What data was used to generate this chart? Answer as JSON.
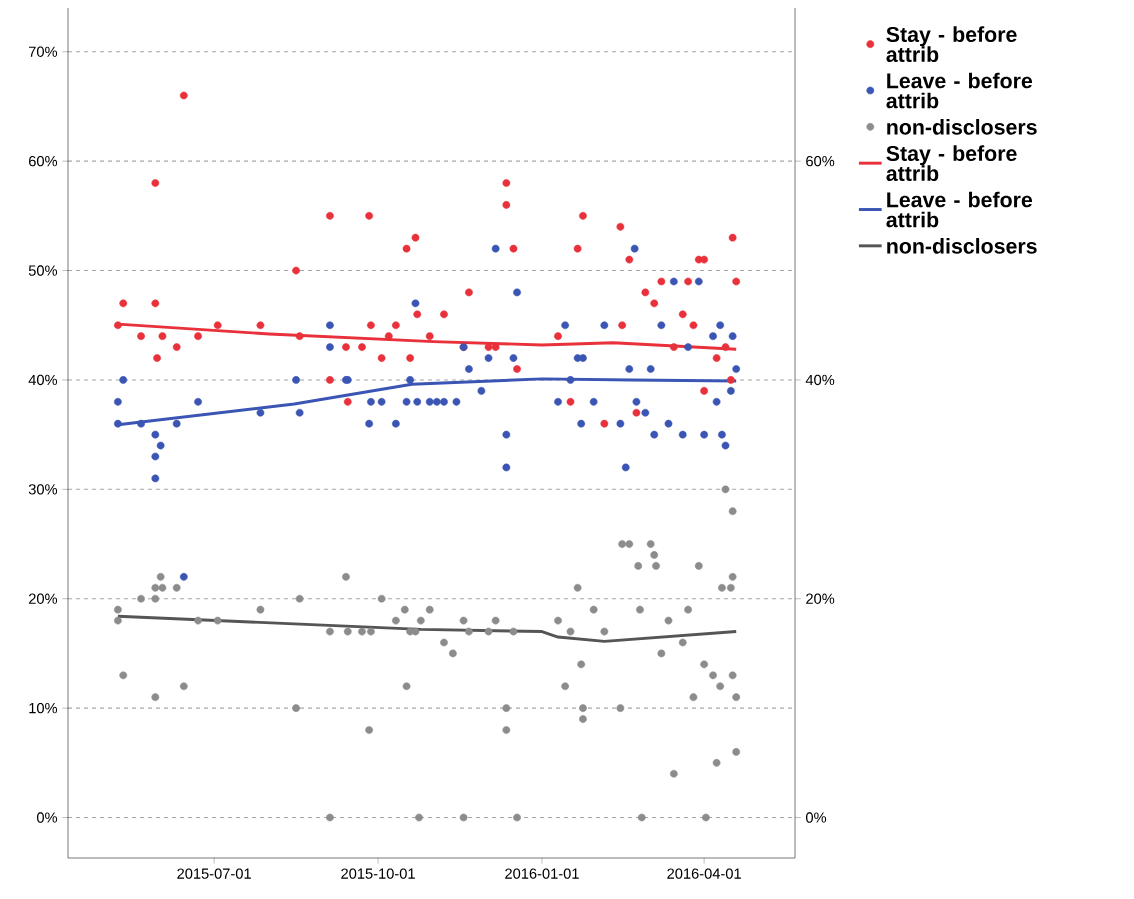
{
  "chart_data": {
    "type": "scatter",
    "xlim": [
      "2015-04-10",
      "2016-05-22"
    ],
    "xticks": [
      "2015-07-01",
      "2015-10-01",
      "2016-01-01",
      "2016-04-01"
    ],
    "ylim": [
      -3.7,
      74
    ],
    "yticks": [
      {
        "value": 0,
        "label": "0%"
      },
      {
        "value": 10,
        "label": "10%"
      },
      {
        "value": 20,
        "label": "20%"
      },
      {
        "value": 30,
        "label": "30%"
      },
      {
        "value": 40,
        "label": "40%"
      },
      {
        "value": 50,
        "label": "50%"
      },
      {
        "value": 60,
        "label": "60%"
      },
      {
        "value": 70,
        "label": "70%"
      }
    ],
    "y2lim": [
      -3.7,
      74
    ],
    "y2ticks": [
      {
        "value": 0,
        "label": "0%"
      },
      {
        "value": 20,
        "label": "20%"
      },
      {
        "value": 40,
        "label": "40%"
      },
      {
        "value": 60,
        "label": "60%"
      }
    ],
    "grid": "y",
    "legend": "right",
    "marker": "circle",
    "series": [
      {
        "name": "Stay - before attrib",
        "color": "#e8313a",
        "x": [
          "2015-05-08",
          "2015-05-11",
          "2015-05-21",
          "2015-05-29",
          "2015-05-29",
          "2015-05-30",
          "2015-06-02",
          "2015-06-10",
          "2015-06-14",
          "2015-06-22",
          "2015-07-03",
          "2015-07-27",
          "2015-08-16",
          "2015-08-18",
          "2015-09-04",
          "2015-09-04",
          "2015-09-13",
          "2015-09-14",
          "2015-09-22",
          "2015-09-26",
          "2015-09-27",
          "2015-10-03",
          "2015-10-07",
          "2015-10-11",
          "2015-10-17",
          "2015-10-19",
          "2015-10-22",
          "2015-10-23",
          "2015-10-30",
          "2015-11-07",
          "2015-11-18",
          "2015-11-21",
          "2015-12-02",
          "2015-12-06",
          "2015-12-12",
          "2015-12-12",
          "2015-12-16",
          "2015-12-18",
          "2016-01-10",
          "2016-01-17",
          "2016-01-21",
          "2016-01-24",
          "2016-02-05",
          "2016-02-14",
          "2016-02-15",
          "2016-02-19",
          "2016-02-23",
          "2016-02-28",
          "2016-03-04",
          "2016-03-08",
          "2016-03-15",
          "2016-03-20",
          "2016-03-23",
          "2016-03-26",
          "2016-03-29",
          "2016-04-01",
          "2016-04-01",
          "2016-04-08",
          "2016-04-13",
          "2016-04-17",
          "2016-04-19",
          "2016-04-16"
        ],
        "values": [
          45,
          47,
          44,
          58,
          47,
          42,
          44,
          43,
          66,
          44,
          45,
          45,
          50,
          44,
          55,
          40,
          43,
          38,
          43,
          55,
          45,
          42,
          44,
          45,
          52,
          42,
          53,
          46,
          44,
          46,
          43,
          48,
          43,
          43,
          58,
          56,
          52,
          41,
          44,
          38,
          52,
          55,
          36,
          54,
          45,
          51,
          37,
          48,
          47,
          49,
          43,
          46,
          49,
          45,
          51,
          51,
          39,
          42,
          43,
          53,
          49,
          40
        ]
      },
      {
        "name": "Leave - before attrib",
        "color": "#3a55b4",
        "x": [
          "2015-05-08",
          "2015-05-08",
          "2015-05-11",
          "2015-05-21",
          "2015-05-29",
          "2015-05-29",
          "2015-05-29",
          "2015-06-01",
          "2015-06-10",
          "2015-06-14",
          "2015-06-22",
          "2015-07-27",
          "2015-08-16",
          "2015-08-18",
          "2015-09-04",
          "2015-09-04",
          "2015-09-13",
          "2015-09-14",
          "2015-09-26",
          "2015-09-27",
          "2015-10-03",
          "2015-10-11",
          "2015-10-17",
          "2015-10-19",
          "2015-10-22",
          "2015-10-23",
          "2015-10-30",
          "2015-11-03",
          "2015-11-07",
          "2015-11-14",
          "2015-11-18",
          "2015-11-21",
          "2015-11-28",
          "2015-12-02",
          "2015-12-06",
          "2015-12-12",
          "2015-12-12",
          "2015-12-16",
          "2015-12-18",
          "2016-01-10",
          "2016-01-14",
          "2016-01-17",
          "2016-01-21",
          "2016-01-23",
          "2016-01-24",
          "2016-01-30",
          "2016-02-05",
          "2016-02-14",
          "2016-02-17",
          "2016-02-19",
          "2016-02-22",
          "2016-02-23",
          "2016-02-28",
          "2016-03-02",
          "2016-03-04",
          "2016-03-08",
          "2016-03-12",
          "2016-03-15",
          "2016-03-20",
          "2016-03-23",
          "2016-03-29",
          "2016-04-01",
          "2016-04-06",
          "2016-04-08",
          "2016-04-10",
          "2016-04-11",
          "2016-04-13",
          "2016-04-17",
          "2016-04-19",
          "2016-04-16"
        ],
        "values": [
          38,
          36,
          40,
          36,
          35,
          33,
          31,
          34,
          36,
          22,
          38,
          37,
          40,
          37,
          45,
          43,
          40,
          40,
          36,
          38,
          38,
          36,
          38,
          40,
          47,
          38,
          38,
          38,
          38,
          38,
          43,
          41,
          39,
          42,
          52,
          35,
          32,
          42,
          48,
          38,
          45,
          40,
          42,
          36,
          42,
          38,
          45,
          36,
          32,
          41,
          52,
          38,
          37,
          41,
          35,
          45,
          36,
          49,
          35,
          43,
          49,
          35,
          44,
          38,
          45,
          35,
          34,
          44,
          41,
          39
        ]
      },
      {
        "name": "non-disclosers",
        "color": "#8c8c8c",
        "x": [
          "2015-05-08",
          "2015-05-08",
          "2015-05-11",
          "2015-05-21",
          "2015-05-29",
          "2015-05-29",
          "2015-05-29",
          "2015-06-01",
          "2015-06-02",
          "2015-06-10",
          "2015-06-14",
          "2015-06-22",
          "2015-07-03",
          "2015-07-27",
          "2015-08-16",
          "2015-08-18",
          "2015-09-04",
          "2015-09-04",
          "2015-09-13",
          "2015-09-14",
          "2015-09-22",
          "2015-09-26",
          "2015-09-27",
          "2015-10-03",
          "2015-10-11",
          "2015-10-16",
          "2015-10-17",
          "2015-10-19",
          "2015-10-22",
          "2015-10-24",
          "2015-10-25",
          "2015-10-30",
          "2015-11-07",
          "2015-11-12",
          "2015-11-18",
          "2015-11-18",
          "2015-11-21",
          "2015-12-02",
          "2015-12-06",
          "2015-12-12",
          "2015-12-12",
          "2015-12-16",
          "2015-12-18",
          "2016-01-10",
          "2016-01-14",
          "2016-01-17",
          "2016-01-21",
          "2016-01-23",
          "2016-01-24",
          "2016-01-24",
          "2016-01-30",
          "2016-02-05",
          "2016-02-14",
          "2016-02-15",
          "2016-02-19",
          "2016-02-24",
          "2016-02-25",
          "2016-02-26",
          "2016-03-02",
          "2016-03-04",
          "2016-03-05",
          "2016-03-08",
          "2016-03-12",
          "2016-03-15",
          "2016-03-20",
          "2016-03-23",
          "2016-03-26",
          "2016-03-29",
          "2016-04-01",
          "2016-04-02",
          "2016-04-06",
          "2016-04-08",
          "2016-04-10",
          "2016-04-11",
          "2016-04-13",
          "2016-04-16",
          "2016-04-17",
          "2016-04-19",
          "2016-04-19",
          "2016-04-17",
          "2016-04-17"
        ],
        "values": [
          19,
          18,
          13,
          20,
          21,
          20,
          11,
          22,
          21,
          21,
          12,
          18,
          18,
          19,
          10,
          20,
          0,
          17,
          22,
          17,
          17,
          8,
          17,
          20,
          18,
          19,
          12,
          17,
          17,
          0,
          18,
          19,
          16,
          15,
          0,
          18,
          17,
          17,
          18,
          10,
          8,
          17,
          0,
          18,
          12,
          17,
          21,
          14,
          10,
          9,
          19,
          17,
          10,
          25,
          25,
          23,
          19,
          0,
          25,
          24,
          23,
          15,
          18,
          4,
          16,
          19,
          11,
          23,
          14,
          0,
          13,
          5,
          12,
          21,
          30,
          21,
          22,
          11,
          6,
          28,
          13
        ]
      },
      {
        "name": "Stay - before attrib",
        "type": "line",
        "marker": "none",
        "color": "#e8313a",
        "x": [
          "2015-05-08",
          "2015-08-01",
          "2015-11-01",
          "2016-01-01",
          "2016-02-10",
          "2016-04-19"
        ],
        "values": [
          45.1,
          44.2,
          43.5,
          43.2,
          43.4,
          42.8
        ]
      },
      {
        "name": "Leave - before attrib",
        "type": "line",
        "marker": "none",
        "color": "#3a55b4",
        "x": [
          "2015-05-08",
          "2015-08-15",
          "2015-10-20",
          "2016-01-01",
          "2016-02-20",
          "2016-04-19"
        ],
        "values": [
          35.9,
          37.8,
          39.6,
          40.1,
          40.0,
          39.9
        ]
      },
      {
        "name": "non-disclosers",
        "type": "line",
        "marker": "none",
        "color": "#555555",
        "x": [
          "2015-05-08",
          "2015-10-25",
          "2016-01-01",
          "2016-01-10",
          "2016-02-05",
          "2016-04-19"
        ],
        "values": [
          18.4,
          17.2,
          17.0,
          16.5,
          16.1,
          17.0
        ]
      }
    ]
  }
}
